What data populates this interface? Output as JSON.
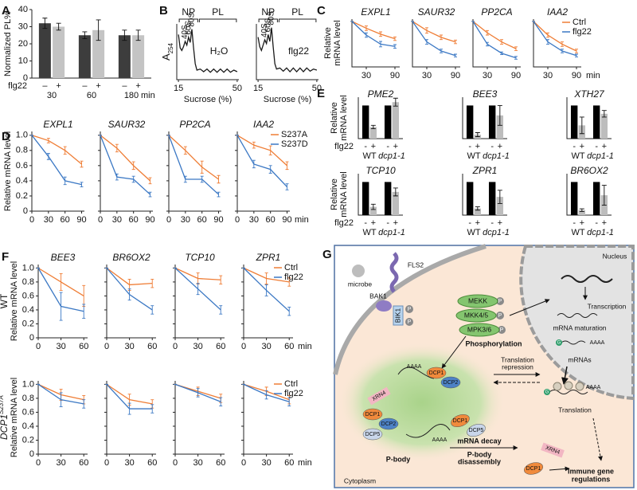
{
  "chart_data": [
    {
      "label": "A",
      "type": "bar",
      "ylabel": "Normalized PL%",
      "ylim": [
        0,
        40
      ],
      "yticks": [
        0,
        10,
        20,
        30,
        40
      ],
      "categories": [
        "30",
        "60",
        "180"
      ],
      "xunit": "min",
      "treatment": "flg22",
      "legend": [
        {
          "name": "–",
          "color": "#3d3d3d"
        },
        {
          "name": "+",
          "color": "#c4c4c4"
        }
      ],
      "subplots": [
        {
          "series": [
            {
              "values": [
                32,
                25,
                25
              ],
              "errors": [
                3,
                2,
                3
              ]
            },
            {
              "values": [
                30,
                28,
                25
              ],
              "errors": [
                2,
                6,
                3
              ]
            }
          ]
        }
      ]
    },
    {
      "label": "B",
      "type": "line",
      "ylabel": {
        "main": "A",
        "sub": "254"
      },
      "xlabel": "Sucrose (%)",
      "xlim": [
        14,
        51
      ],
      "ylim": [
        0,
        1.05
      ],
      "xticks": [
        15,
        50
      ],
      "color": "#1a1a1a",
      "regions": [
        {
          "name": "NP",
          "range": [
            15,
            27
          ]
        },
        {
          "name": "PL",
          "range": [
            27,
            50
          ]
        }
      ],
      "peaks": [
        {
          "name": "40S",
          "x": 19
        },
        {
          "name": "60S",
          "x": 21
        },
        {
          "name": "80S",
          "x": 23
        }
      ],
      "x": [
        15,
        16,
        17,
        18,
        19,
        20,
        21,
        22,
        23,
        24,
        25,
        26,
        28,
        30,
        32,
        34,
        36,
        38,
        40,
        42,
        44,
        46,
        48,
        50
      ],
      "subplots": [
        {
          "title": "H₂O",
          "series": [
            {
              "values": [
                0.85,
                0.6,
                0.55,
                0.62,
                0.72,
                0.65,
                0.8,
                0.7,
                0.95,
                0.6,
                0.3,
                0.18,
                0.2,
                0.15,
                0.2,
                0.14,
                0.2,
                0.14,
                0.2,
                0.14,
                0.2,
                0.14,
                0.18,
                0.15
              ]
            }
          ]
        },
        {
          "title": "flg22",
          "series": [
            {
              "values": [
                0.8,
                0.62,
                0.55,
                0.65,
                0.75,
                0.68,
                0.85,
                0.72,
                0.98,
                0.62,
                0.3,
                0.2,
                0.22,
                0.16,
                0.22,
                0.15,
                0.22,
                0.15,
                0.22,
                0.15,
                0.22,
                0.16,
                0.2,
                0.18
              ]
            }
          ]
        }
      ]
    },
    {
      "label": "C",
      "type": "line",
      "ylabel": [
        "Relative",
        "mRNA level"
      ],
      "xunit": "min",
      "x": [
        0,
        30,
        60,
        90
      ],
      "xlim": [
        0,
        100
      ],
      "ylim": [
        0,
        1.05
      ],
      "xticks": [
        30,
        90
      ],
      "legend": [
        {
          "name": "Ctrl",
          "color": "#ef7d35"
        },
        {
          "name": "flg22",
          "color": "#3b78c4"
        }
      ],
      "subplots": [
        {
          "title": "EXPL1",
          "series": [
            {
              "values": [
                1,
                0.85,
                0.72,
                0.62
              ],
              "errors": [
                0,
                0.05,
                0.05,
                0.04
              ]
            },
            {
              "values": [
                1,
                0.7,
                0.5,
                0.45
              ],
              "errors": [
                0,
                0.05,
                0.06,
                0.04
              ]
            }
          ]
        },
        {
          "title": "SAUR32",
          "series": [
            {
              "values": [
                1,
                0.8,
                0.65,
                0.55
              ],
              "errors": [
                0,
                0.06,
                0.05,
                0.04
              ]
            },
            {
              "values": [
                1,
                0.55,
                0.35,
                0.25
              ],
              "errors": [
                0,
                0.05,
                0.04,
                0.03
              ]
            }
          ]
        },
        {
          "title": "PP2CA",
          "series": [
            {
              "values": [
                1,
                0.75,
                0.55,
                0.4
              ],
              "errors": [
                0,
                0.05,
                0.05,
                0.04
              ]
            },
            {
              "values": [
                1,
                0.5,
                0.3,
                0.2
              ],
              "errors": [
                0,
                0.04,
                0.03,
                0.03
              ]
            }
          ]
        },
        {
          "title": "IAA2",
          "series": [
            {
              "values": [
                1,
                0.7,
                0.5,
                0.35
              ],
              "errors": [
                0,
                0.05,
                0.05,
                0.04
              ]
            },
            {
              "values": [
                1,
                0.55,
                0.35,
                0.25
              ],
              "errors": [
                0,
                0.05,
                0.04,
                0.03
              ]
            }
          ]
        }
      ]
    },
    {
      "label": "D",
      "type": "line",
      "ylabel": "Relative mRNA level",
      "xunit": "min",
      "x": [
        0,
        30,
        60,
        90
      ],
      "xlim": [
        0,
        95
      ],
      "ylim": [
        0,
        1.05
      ],
      "yticks": [
        0,
        0.2,
        0.4,
        0.6,
        0.8,
        {
          "value": 1,
          "label": "1.0"
        }
      ],
      "xticks": [
        0,
        30,
        60,
        90
      ],
      "legend": [
        {
          "name": "S237A",
          "color": "#ef7d35"
        },
        {
          "name": "S237D",
          "color": "#3b78c4"
        }
      ],
      "subplots": [
        {
          "title": "EXPL1",
          "series": [
            {
              "values": [
                1,
                0.93,
                0.8,
                0.62
              ],
              "errors": [
                0,
                0.03,
                0.05,
                0.04
              ]
            },
            {
              "values": [
                1,
                0.72,
                0.4,
                0.35
              ],
              "errors": [
                0,
                0.04,
                0.05,
                0.03
              ]
            }
          ]
        },
        {
          "title": "SAUR32",
          "series": [
            {
              "values": [
                1,
                0.83,
                0.6,
                0.4
              ],
              "errors": [
                0,
                0.05,
                0.05,
                0.04
              ]
            },
            {
              "values": [
                1,
                0.45,
                0.42,
                0.22
              ],
              "errors": [
                0,
                0.04,
                0.04,
                0.03
              ]
            }
          ]
        },
        {
          "title": "PP2CA",
          "series": [
            {
              "values": [
                1,
                0.8,
                0.58,
                0.42
              ],
              "errors": [
                0,
                0.05,
                0.08,
                0.05
              ]
            },
            {
              "values": [
                1,
                0.42,
                0.42,
                0.22
              ],
              "errors": [
                0,
                0.04,
                0.04,
                0.03
              ]
            }
          ]
        },
        {
          "title": "IAA2",
          "series": [
            {
              "values": [
                1,
                0.87,
                0.8,
                0.6
              ],
              "errors": [
                0,
                0.04,
                0.06,
                0.05
              ]
            },
            {
              "values": [
                1,
                0.62,
                0.55,
                0.32
              ],
              "errors": [
                0,
                0.05,
                0.05,
                0.04
              ]
            }
          ]
        }
      ]
    },
    {
      "label": "E",
      "type": "bar",
      "ylabel": [
        "Relative",
        "mRNA level"
      ],
      "ylim": [
        0,
        1.25
      ],
      "treatment": "flg22",
      "categories": [
        "WT",
        "dcp1-1"
      ],
      "legend": [
        {
          "name": "-",
          "color": "#000000"
        },
        {
          "name": "+",
          "color": "#bdbdbd"
        }
      ],
      "subplots": [
        {
          "title": "PME2",
          "series": [
            {
              "values": [
                1,
                1
              ]
            },
            {
              "values": [
                0.35,
                1.1
              ],
              "errors": [
                0.05,
                0.12
              ]
            }
          ]
        },
        {
          "title": "BEE3",
          "series": [
            {
              "values": [
                1,
                1
              ]
            },
            {
              "values": [
                0.12,
                0.7
              ],
              "errors": [
                0.06,
                0.3
              ]
            }
          ]
        },
        {
          "title": "XTH27",
          "series": [
            {
              "values": [
                1,
                1
              ]
            },
            {
              "values": [
                0.4,
                0.75
              ],
              "errors": [
                0.25,
                0.1
              ]
            }
          ]
        },
        {
          "title": "TCP10",
          "series": [
            {
              "values": [
                1,
                1
              ]
            },
            {
              "values": [
                0.25,
                0.7
              ],
              "errors": [
                0.08,
                0.12
              ]
            }
          ]
        },
        {
          "title": "ZPR1",
          "series": [
            {
              "values": [
                1,
                1
              ]
            },
            {
              "values": [
                0.2,
                0.55
              ],
              "errors": [
                0.05,
                0.2
              ]
            }
          ]
        },
        {
          "title": "BR6OX2",
          "series": [
            {
              "values": [
                1,
                1
              ]
            },
            {
              "values": [
                0.15,
                0.6
              ],
              "errors": [
                0.04,
                0.3
              ]
            }
          ]
        }
      ]
    },
    {
      "label": "F",
      "type": "line",
      "row_label": {
        "text": "WT"
      },
      "ylabel": "Relative mRNA level",
      "xunit": "min",
      "x": [
        0,
        30,
        60
      ],
      "xlim": [
        0,
        65
      ],
      "ylim": [
        0,
        1.05
      ],
      "yticks": [
        0,
        0.2,
        0.4,
        0.6,
        0.8,
        {
          "value": 1,
          "label": "1.0"
        }
      ],
      "xticks": [
        0,
        30,
        60
      ],
      "legend": [
        {
          "name": "Ctrl",
          "color": "#ef7d35"
        },
        {
          "name": "flg22",
          "color": "#3b78c4"
        }
      ],
      "subplots": [
        {
          "title": "BEE3",
          "series": [
            {
              "values": [
                1,
                0.8,
                0.6
              ],
              "errors": [
                0,
                0.12,
                0.15
              ]
            },
            {
              "values": [
                1,
                0.45,
                0.38
              ],
              "errors": [
                0,
                0.2,
                0.1
              ]
            }
          ]
        },
        {
          "title": "BR6OX2",
          "series": [
            {
              "values": [
                1,
                0.76,
                0.78
              ],
              "errors": [
                0,
                0.08,
                0.06
              ]
            },
            {
              "values": [
                1,
                0.62,
                0.4
              ],
              "errors": [
                0,
                0.08,
                0.06
              ]
            }
          ]
        },
        {
          "title": "TCP10",
          "series": [
            {
              "values": [
                1,
                0.85,
                0.83
              ],
              "errors": [
                0,
                0.08,
                0.06
              ]
            },
            {
              "values": [
                1,
                0.7,
                0.4
              ],
              "errors": [
                0,
                0.08,
                0.06
              ]
            }
          ]
        },
        {
          "title": "ZPR1",
          "series": [
            {
              "values": [
                1,
                0.85,
                0.8
              ],
              "errors": [
                0,
                0.08,
                0.06
              ]
            },
            {
              "values": [
                1,
                0.68,
                0.38
              ],
              "errors": [
                0,
                0.08,
                0.06
              ]
            }
          ]
        }
      ]
    },
    {
      "type": "line",
      "row_label": {
        "text": "DCP1",
        "sup": "S237A"
      },
      "ylabel": "Relative mRNA level",
      "xunit": "min",
      "x": [
        0,
        30,
        60
      ],
      "xlim": [
        0,
        65
      ],
      "ylim": [
        0,
        1.05
      ],
      "yticks": [
        0,
        0.2,
        0.4,
        0.6,
        0.8,
        {
          "value": 1,
          "label": "1.0"
        }
      ],
      "xticks": [
        0,
        30,
        60
      ],
      "legend": [
        {
          "name": "Ctrl",
          "color": "#ef7d35"
        },
        {
          "name": "flg22",
          "color": "#3b78c4"
        }
      ],
      "subplots": [
        {
          "series": [
            {
              "values": [
                1,
                0.85,
                0.78
              ],
              "errors": [
                0,
                0.08,
                0.06
              ]
            },
            {
              "values": [
                1,
                0.78,
                0.72
              ],
              "errors": [
                0,
                0.1,
                0.06
              ]
            }
          ]
        },
        {
          "series": [
            {
              "values": [
                1,
                0.78,
                0.72
              ],
              "errors": [
                0,
                0.08,
                0.06
              ]
            },
            {
              "values": [
                1,
                0.65,
                0.65
              ],
              "errors": [
                0,
                0.08,
                0.06
              ]
            }
          ]
        },
        {
          "series": [
            {
              "values": [
                1,
                0.9,
                0.8
              ],
              "errors": [
                0,
                0.06,
                0.06
              ]
            },
            {
              "values": [
                1,
                0.88,
                0.75
              ],
              "errors": [
                0,
                0.06,
                0.06
              ]
            }
          ]
        },
        {
          "series": [
            {
              "values": [
                1,
                0.9,
                0.78
              ],
              "errors": [
                0,
                0.06,
                0.06
              ]
            },
            {
              "values": [
                1,
                0.85,
                0.75
              ],
              "errors": [
                0,
                0.06,
                0.06
              ]
            }
          ]
        }
      ]
    }
  ],
  "diagram": {
    "label": "G",
    "nucleus": "Nucleus",
    "microbe": "microbe",
    "receptors": [
      "FLS2",
      "BAK1",
      "BIK1"
    ],
    "phospho": "P",
    "kinases": [
      "MEKK",
      "MKK4/5",
      "MPK3/6"
    ],
    "phosphorylation": "Phosphorylation",
    "transcription": "Transcription",
    "maturation": "mRNA maturation",
    "mrnas": "mRNAs",
    "repression": [
      "Translation",
      "repression"
    ],
    "translation": "Translation",
    "pbody": "P-body",
    "decay": "mRNA decay",
    "disassembly": [
      "P-body",
      "disassembly"
    ],
    "immune": [
      "Immune gene",
      "regulations"
    ],
    "cytoplasm": "Cytoplasm",
    "proteins": {
      "xrn4": "XRN4",
      "dcp1": "DCP1",
      "dcp2": "DCP2",
      "dcp5": "DCP5"
    },
    "polya": "AAAA",
    "cap": "G"
  }
}
